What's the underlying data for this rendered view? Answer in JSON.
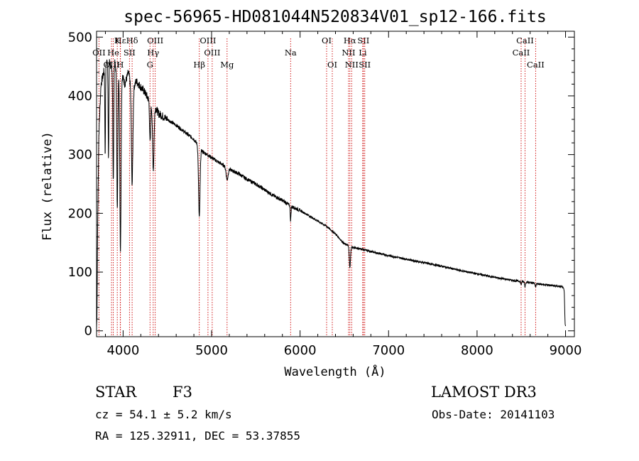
{
  "chart_data": {
    "type": "line",
    "title": "spec-56965-HD081044N520834V01_sp12-166.fits",
    "xlabel": "Wavelength (Å)",
    "ylabel": "Flux (relative)",
    "xlim": [
      3700,
      9100
    ],
    "ylim": [
      -10,
      510
    ],
    "xticks": [
      4000,
      5000,
      6000,
      7000,
      8000,
      9000
    ],
    "yticks": [
      0,
      100,
      200,
      300,
      400,
      500
    ],
    "series": [
      {
        "name": "spectrum",
        "continuum_points": [
          [
            3700,
            5
          ],
          [
            3705,
            25
          ],
          [
            3712,
            170
          ],
          [
            3725,
            330
          ],
          [
            3750,
            420
          ],
          [
            3780,
            440
          ],
          [
            3810,
            455
          ],
          [
            3840,
            470
          ],
          [
            3870,
            440
          ],
          [
            3900,
            460
          ],
          [
            3940,
            430
          ],
          [
            3980,
            440
          ],
          [
            4020,
            420
          ],
          [
            4060,
            440
          ],
          [
            4100,
            410
          ],
          [
            4150,
            425
          ],
          [
            4200,
            415
          ],
          [
            4250,
            405
          ],
          [
            4300,
            390
          ],
          [
            4350,
            385
          ],
          [
            4400,
            370
          ],
          [
            4500,
            360
          ],
          [
            4600,
            350
          ],
          [
            4700,
            338
          ],
          [
            4800,
            326
          ],
          [
            4900,
            305
          ],
          [
            5000,
            295
          ],
          [
            5100,
            285
          ],
          [
            5200,
            275
          ],
          [
            5300,
            268
          ],
          [
            5400,
            258
          ],
          [
            5500,
            250
          ],
          [
            5600,
            240
          ],
          [
            5700,
            230
          ],
          [
            5800,
            222
          ],
          [
            5900,
            212
          ],
          [
            6000,
            205
          ],
          [
            6100,
            196
          ],
          [
            6200,
            187
          ],
          [
            6300,
            178
          ],
          [
            6400,
            165
          ],
          [
            6500,
            148
          ],
          [
            6600,
            142
          ],
          [
            6700,
            139
          ],
          [
            6800,
            135
          ],
          [
            7000,
            128
          ],
          [
            7200,
            122
          ],
          [
            7400,
            116
          ],
          [
            7600,
            110
          ],
          [
            7800,
            103
          ],
          [
            8000,
            97
          ],
          [
            8200,
            91
          ],
          [
            8400,
            86
          ],
          [
            8600,
            82
          ],
          [
            8800,
            78
          ],
          [
            8960,
            75
          ],
          [
            8985,
            70
          ],
          [
            8995,
            12
          ],
          [
            9000,
            8
          ]
        ],
        "absorption_features": [
          {
            "wavelength": 3797,
            "depth": 150,
            "width": 5
          },
          {
            "wavelength": 3835,
            "depth": 180,
            "width": 6
          },
          {
            "wavelength": 3889,
            "depth": 200,
            "width": 7
          },
          {
            "wavelength": 3934,
            "depth": 230,
            "width": 8
          },
          {
            "wavelength": 3970,
            "depth": 300,
            "width": 10
          },
          {
            "wavelength": 4102,
            "depth": 160,
            "width": 12
          },
          {
            "wavelength": 4305,
            "depth": 70,
            "width": 8
          },
          {
            "wavelength": 4341,
            "depth": 110,
            "width": 12
          },
          {
            "wavelength": 4861,
            "depth": 120,
            "width": 12
          },
          {
            "wavelength": 5175,
            "depth": 20,
            "width": 15
          },
          {
            "wavelength": 5893,
            "depth": 25,
            "width": 6
          },
          {
            "wavelength": 6563,
            "depth": 35,
            "width": 10
          },
          {
            "wavelength": 8498,
            "depth": 6,
            "width": 6
          },
          {
            "wavelength": 8542,
            "depth": 8,
            "width": 6
          },
          {
            "wavelength": 8662,
            "depth": 7,
            "width": 6
          }
        ]
      }
    ],
    "line_markers": [
      {
        "label": "Hε",
        "wavelength": 3970,
        "row": 1
      },
      {
        "label": "K",
        "wavelength": 3934,
        "row": 1
      },
      {
        "label": "Hδ",
        "wavelength": 4102,
        "row": 1
      },
      {
        "label": "OIII",
        "wavelength": 4363,
        "row": 1
      },
      {
        "label": "OIII",
        "wavelength": 4959,
        "row": 1
      },
      {
        "label": "OI",
        "wavelength": 6300,
        "row": 1
      },
      {
        "label": "Hα",
        "wavelength": 6563,
        "row": 1
      },
      {
        "label": "SII",
        "wavelength": 6716,
        "row": 1
      },
      {
        "label": "CaII",
        "wavelength": 8542,
        "row": 1
      },
      {
        "label": "OII",
        "wavelength": 3727,
        "row": 2
      },
      {
        "label": "He",
        "wavelength": 3889,
        "row": 2
      },
      {
        "label": "SII",
        "wavelength": 4072,
        "row": 2
      },
      {
        "label": "Hγ",
        "wavelength": 4340,
        "row": 2
      },
      {
        "label": "OIII",
        "wavelength": 5007,
        "row": 2
      },
      {
        "label": "Na",
        "wavelength": 5893,
        "row": 2
      },
      {
        "label": "NII",
        "wavelength": 6548,
        "row": 2
      },
      {
        "label": "Li",
        "wavelength": 6708,
        "row": 2
      },
      {
        "label": "CaII",
        "wavelength": 8498,
        "row": 2
      },
      {
        "label": "OIII",
        "wavelength": 3869,
        "row": 3
      },
      {
        "label": "H",
        "wavelength": 3968,
        "row": 3
      },
      {
        "label": "G",
        "wavelength": 4304,
        "row": 3
      },
      {
        "label": "Hβ",
        "wavelength": 4861,
        "row": 3
      },
      {
        "label": "Mg",
        "wavelength": 5175,
        "row": 3
      },
      {
        "label": "OI",
        "wavelength": 6364,
        "row": 3
      },
      {
        "label": "NII",
        "wavelength": 6583,
        "row": 3
      },
      {
        "label": "SII",
        "wavelength": 6731,
        "row": 3
      },
      {
        "label": "CaII",
        "wavelength": 8662,
        "row": 3
      }
    ],
    "colors": {
      "curve": "#000000",
      "marker_line": "#cc0000",
      "axes": "#000000"
    }
  },
  "info": {
    "object_type": "STAR",
    "subclass": "F3",
    "survey": "LAMOST DR3",
    "cz": "cz = 54.1 ± 5.2 km/s",
    "obs_date": "Obs-Date: 20141103",
    "coords": "RA = 125.32911, DEC =  53.37855"
  }
}
